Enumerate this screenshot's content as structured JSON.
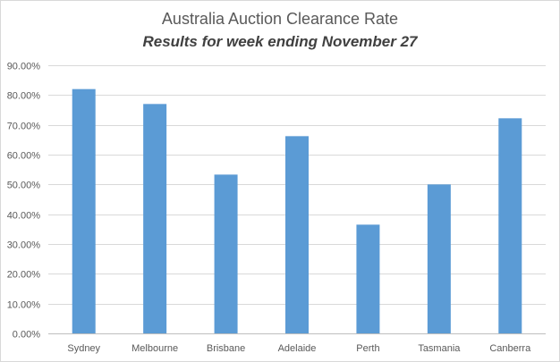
{
  "chart_data": {
    "type": "bar",
    "title": "Australia Auction Clearance Rate",
    "subtitle": "Results for week ending November 27",
    "categories": [
      "Sydney",
      "Melbourne",
      "Brisbane",
      "Adelaide",
      "Perth",
      "Tasmania",
      "Canberra"
    ],
    "values": [
      0.82,
      0.77,
      0.533,
      0.662,
      0.365,
      0.5,
      0.722
    ],
    "ylim": [
      0,
      0.9
    ],
    "yticks": [
      0,
      0.1,
      0.2,
      0.3,
      0.4,
      0.5,
      0.6,
      0.7,
      0.8,
      0.9
    ],
    "ytick_labels": [
      "0.00%",
      "10.00%",
      "20.00%",
      "30.00%",
      "40.00%",
      "50.00%",
      "60.00%",
      "70.00%",
      "80.00%",
      "90.00%"
    ],
    "grid": true,
    "bar_color": "#5b9bd5",
    "grid_color": "#d9d9d9"
  }
}
